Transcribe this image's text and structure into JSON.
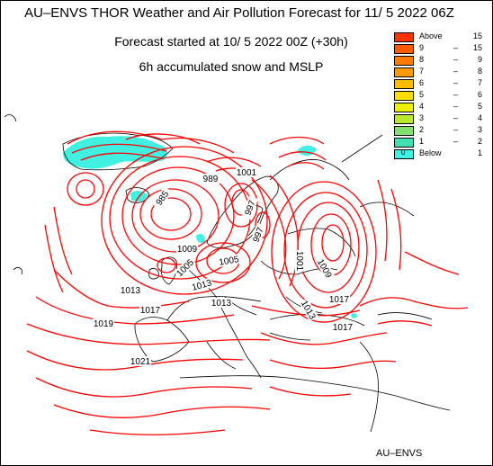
{
  "title": "AU–ENVS THOR Weather and Air Pollution Forecast for 11/ 5 2022  06Z",
  "subtitle": "Forecast started at 10/ 5 2022  00Z (+30h)",
  "parameter": "6h accumulated snow and MSLP",
  "credit": "AU–ENVS",
  "legend": [
    {
      "low": "Above",
      "high": "15",
      "color": "#ff3300"
    },
    {
      "low": "9",
      "high": "15",
      "color": "#ff5a00"
    },
    {
      "low": "8",
      "high": "9",
      "color": "#ff7a00"
    },
    {
      "low": "7",
      "high": "8",
      "color": "#ff9900"
    },
    {
      "low": "6",
      "high": "7",
      "color": "#ffbb00"
    },
    {
      "low": "5",
      "high": "6",
      "color": "#ffdd00"
    },
    {
      "low": "4",
      "high": "5",
      "color": "#eaf000"
    },
    {
      "low": "3",
      "high": "4",
      "color": "#b8e830"
    },
    {
      "low": "2",
      "high": "3",
      "color": "#80e070"
    },
    {
      "low": "1",
      "high": "2",
      "color": "#40e0b0"
    },
    {
      "low": "Below",
      "high": "1",
      "color": "#40f0e0",
      "swatch_mark": "0"
    }
  ],
  "isobar_labels": [
    "985",
    "989",
    "1001",
    "997",
    "997",
    "1005",
    "1005",
    "1013",
    "1013",
    "1013",
    "1013",
    "1017",
    "1017",
    "1017",
    "1019",
    "1021",
    "1001",
    "1009",
    "1009"
  ],
  "colors": {
    "isobar": "#ff0000",
    "coast": "#000000",
    "snow": "#40f0e0"
  }
}
